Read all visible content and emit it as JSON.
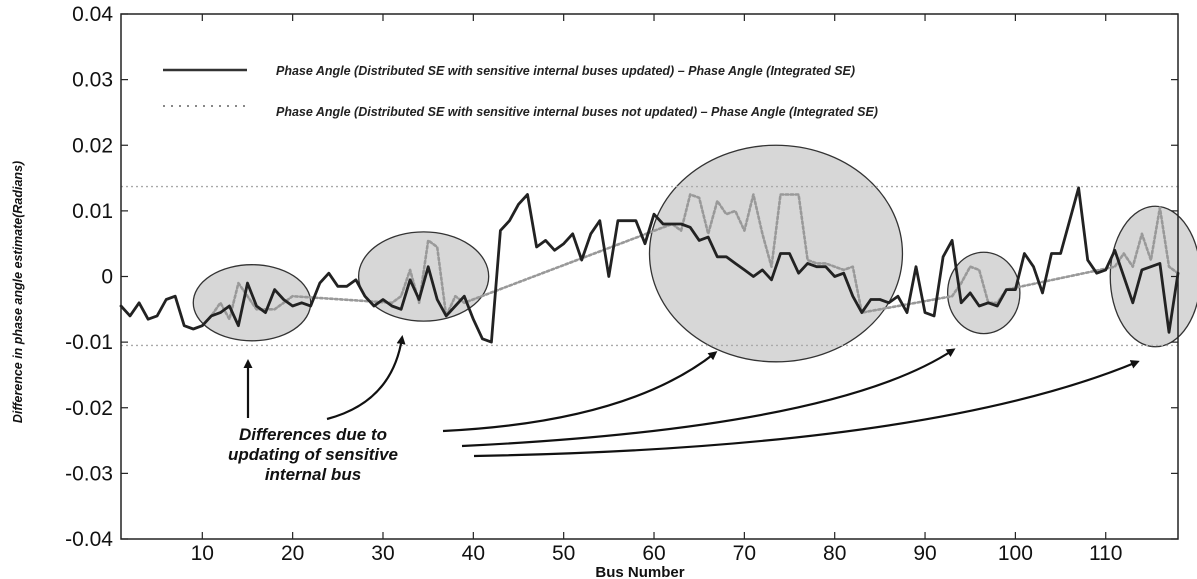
{
  "chart_data": {
    "type": "line",
    "xlabel": "Bus Number",
    "ylabel": "Difference in phase angle estimate(Radians)",
    "xlim": [
      1,
      118
    ],
    "ylim": [
      -0.04,
      0.04
    ],
    "xticks": [
      10,
      20,
      30,
      40,
      50,
      60,
      70,
      80,
      90,
      100,
      110
    ],
    "yticks": [
      -0.04,
      -0.03,
      -0.02,
      -0.01,
      0,
      0.01,
      0.02,
      0.03,
      0.04
    ],
    "ytick_labels": [
      "-0.04",
      "-0.03",
      "-0.02",
      "-0.01",
      "0",
      "0.01",
      "0.02",
      "0.03",
      "0.04"
    ],
    "xtick_labels": [
      "10",
      "20",
      "30",
      "40",
      "50",
      "60",
      "70",
      "80",
      "90",
      "100",
      "110"
    ],
    "grid": false,
    "legend_placement": "top",
    "reference_lines": [
      0.0137,
      -0.0105
    ],
    "series": [
      {
        "name": "Phase Angle (Distributed SE with sensitive internal buses updated) – Phase Angle (Integrated SE)",
        "style": "solid",
        "color": "#222222",
        "x": [
          1,
          2,
          3,
          4,
          5,
          6,
          7,
          8,
          9,
          10,
          11,
          12,
          13,
          14,
          15,
          16,
          17,
          18,
          19,
          20,
          21,
          22,
          23,
          24,
          25,
          26,
          27,
          28,
          29,
          30,
          31,
          32,
          33,
          34,
          35,
          36,
          37,
          38,
          39,
          40,
          41,
          42,
          43,
          44,
          45,
          46,
          47,
          48,
          49,
          50,
          51,
          52,
          53,
          54,
          55,
          56,
          57,
          58,
          59,
          60,
          61,
          62,
          63,
          64,
          65,
          66,
          67,
          68,
          69,
          70,
          71,
          72,
          73,
          74,
          75,
          76,
          77,
          78,
          79,
          80,
          81,
          82,
          83,
          84,
          85,
          86,
          87,
          88,
          89,
          90,
          91,
          92,
          93,
          94,
          95,
          96,
          97,
          98,
          99,
          100,
          101,
          102,
          103,
          104,
          105,
          106,
          107,
          108,
          109,
          110,
          111,
          112,
          113,
          114,
          115,
          116,
          117,
          118
        ],
        "y": [
          -0.0045,
          -0.006,
          -0.004,
          -0.0065,
          -0.006,
          -0.0035,
          -0.003,
          -0.0075,
          -0.008,
          -0.0075,
          -0.006,
          -0.0055,
          -0.0045,
          -0.0075,
          -0.001,
          -0.0045,
          -0.0055,
          -0.002,
          -0.0035,
          -0.0045,
          -0.004,
          -0.0045,
          -0.001,
          0.0005,
          -0.0015,
          -0.0015,
          -0.0005,
          -0.003,
          -0.0045,
          -0.0035,
          -0.0045,
          -0.005,
          -0.0005,
          -0.0035,
          0.0015,
          -0.0035,
          -0.006,
          -0.0045,
          -0.003,
          -0.0065,
          -0.0095,
          -0.01,
          0.007,
          0.0085,
          0.011,
          0.0125,
          0.0045,
          0.0055,
          0.004,
          0.005,
          0.0065,
          0.0025,
          0.0065,
          0.0085,
          0.0,
          0.0085,
          0.0085,
          0.0085,
          0.005,
          0.0095,
          0.008,
          0.008,
          0.008,
          0.0075,
          0.0055,
          0.006,
          0.003,
          0.003,
          0.002,
          0.001,
          0.0,
          0.001,
          -0.0005,
          0.0035,
          0.0035,
          0.0005,
          0.002,
          0.0015,
          0.0015,
          0.0,
          0.0005,
          -0.003,
          -0.0055,
          -0.0035,
          -0.0035,
          -0.004,
          -0.003,
          -0.0055,
          0.0015,
          -0.0055,
          -0.006,
          0.003,
          0.0055,
          -0.004,
          -0.0025,
          -0.0045,
          -0.004,
          -0.0045,
          -0.002,
          -0.002,
          0.0035,
          0.0015,
          -0.0025,
          0.0035,
          0.0035,
          0.0085,
          0.0135,
          0.0025,
          0.0005,
          0.001,
          0.004,
          0.0,
          -0.004,
          0.001,
          0.0015,
          0.002,
          -0.0085,
          0.0005
        ]
      },
      {
        "name": "Phase Angle (Distributed SE with sensitive internal buses not updated) – Phase Angle (Integrated SE)",
        "style": "dotted",
        "color": "#999999",
        "x": [
          10,
          11,
          12,
          13,
          14,
          15,
          16,
          17,
          18,
          19,
          20,
          31,
          32,
          33,
          34,
          35,
          36,
          37,
          38,
          39,
          62,
          63,
          64,
          65,
          66,
          67,
          68,
          69,
          70,
          71,
          72,
          73,
          74,
          75,
          76,
          77,
          78,
          79,
          80,
          81,
          82,
          83,
          93,
          94,
          95,
          96,
          97,
          98,
          99,
          111,
          112,
          113,
          114,
          115,
          116,
          117,
          118
        ],
        "y": [
          -0.0075,
          -0.006,
          -0.004,
          -0.0065,
          -0.001,
          -0.003,
          -0.005,
          -0.005,
          -0.005,
          -0.004,
          -0.003,
          -0.004,
          -0.003,
          0.001,
          -0.004,
          0.0055,
          0.0045,
          -0.006,
          -0.003,
          -0.004,
          0.008,
          0.007,
          0.0125,
          0.012,
          0.0065,
          0.0115,
          0.0095,
          0.01,
          0.007,
          0.0125,
          0.0065,
          0.0015,
          0.0125,
          0.0125,
          0.0125,
          0.0025,
          0.002,
          0.002,
          0.0015,
          0.001,
          0.0015,
          -0.0055,
          -0.003,
          -0.001,
          0.0015,
          0.001,
          -0.004,
          -0.004,
          -0.002,
          0.0015,
          0.0035,
          0.0015,
          0.0065,
          0.0025,
          0.0105,
          0.0015,
          0.0005
        ]
      }
    ],
    "highlight_regions": [
      {
        "cx": 15.5,
        "cy": -0.004,
        "rx": 6.5,
        "ry": 0.0058
      },
      {
        "cx": 34.5,
        "cy": 0.0,
        "rx": 7.2,
        "ry": 0.0068
      },
      {
        "cx": 73.5,
        "cy": 0.0035,
        "rx": 14,
        "ry": 0.0165
      },
      {
        "cx": 96.5,
        "cy": -0.0025,
        "rx": 4,
        "ry": 0.0062
      },
      {
        "cx": 115.5,
        "cy": 0.0,
        "rx": 5,
        "ry": 0.0107
      }
    ],
    "annotation": {
      "lines": [
        "Differences due to",
        "updating of sensitive",
        "internal bus"
      ]
    }
  }
}
